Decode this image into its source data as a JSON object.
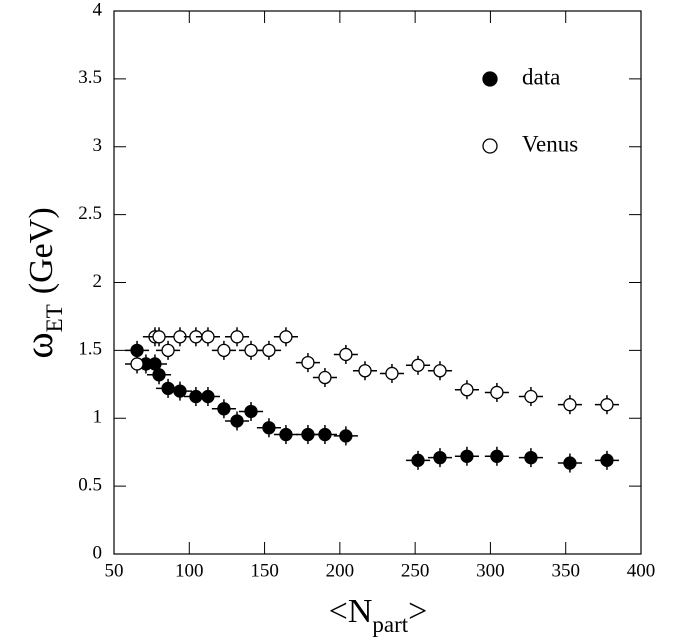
{
  "chart_data": {
    "type": "scatter",
    "xlabel": {
      "text": "<N",
      "subscript": "part",
      "suffix": ">"
    },
    "ylabel": {
      "symbol": "ω",
      "subscript": "ET",
      "unit": "(GeV)"
    },
    "xlim": [
      50,
      400
    ],
    "xticks": [
      50,
      100,
      150,
      200,
      250,
      300,
      350,
      400
    ],
    "ylim": [
      0,
      4
    ],
    "yticks": [
      0,
      0.5,
      1,
      1.5,
      2,
      2.5,
      3,
      3.5,
      4
    ],
    "legend": "upper right",
    "series": [
      {
        "name": "data",
        "color": "#000000",
        "marker": "filled",
        "yerr": 0.07,
        "xerr": 8,
        "x": [
          65.3,
          71.2,
          77.2,
          79.9,
          85.9,
          93.8,
          104.4,
          112.4,
          123.0,
          131.7,
          141.0,
          152.9,
          164.2,
          178.8,
          190.1,
          204.0,
          251.9,
          266.5,
          284.4,
          304.3,
          326.9,
          352.8,
          377.4
        ],
        "values": [
          1.5,
          1.4,
          1.4,
          1.32,
          1.22,
          1.2,
          1.16,
          1.16,
          1.07,
          0.98,
          1.05,
          0.93,
          0.88,
          0.88,
          0.88,
          0.87,
          0.69,
          0.71,
          0.72,
          0.72,
          0.71,
          0.67,
          0.69
        ]
      },
      {
        "name": "Venus",
        "color": "#000000",
        "marker": "open",
        "yerr": 0.07,
        "xerr": 8,
        "x": [
          65.3,
          77.2,
          79.9,
          85.9,
          93.8,
          104.4,
          112.4,
          123.0,
          131.7,
          141.0,
          152.9,
          164.2,
          178.8,
          190.1,
          204.0,
          216.7,
          234.6,
          251.9,
          266.5,
          284.4,
          304.3,
          326.9,
          352.8,
          377.4
        ],
        "values": [
          1.4,
          1.6,
          1.6,
          1.5,
          1.6,
          1.6,
          1.6,
          1.5,
          1.6,
          1.5,
          1.5,
          1.6,
          1.41,
          1.3,
          1.47,
          1.35,
          1.33,
          1.39,
          1.35,
          1.21,
          1.19,
          1.16,
          1.1,
          1.1
        ]
      }
    ]
  }
}
